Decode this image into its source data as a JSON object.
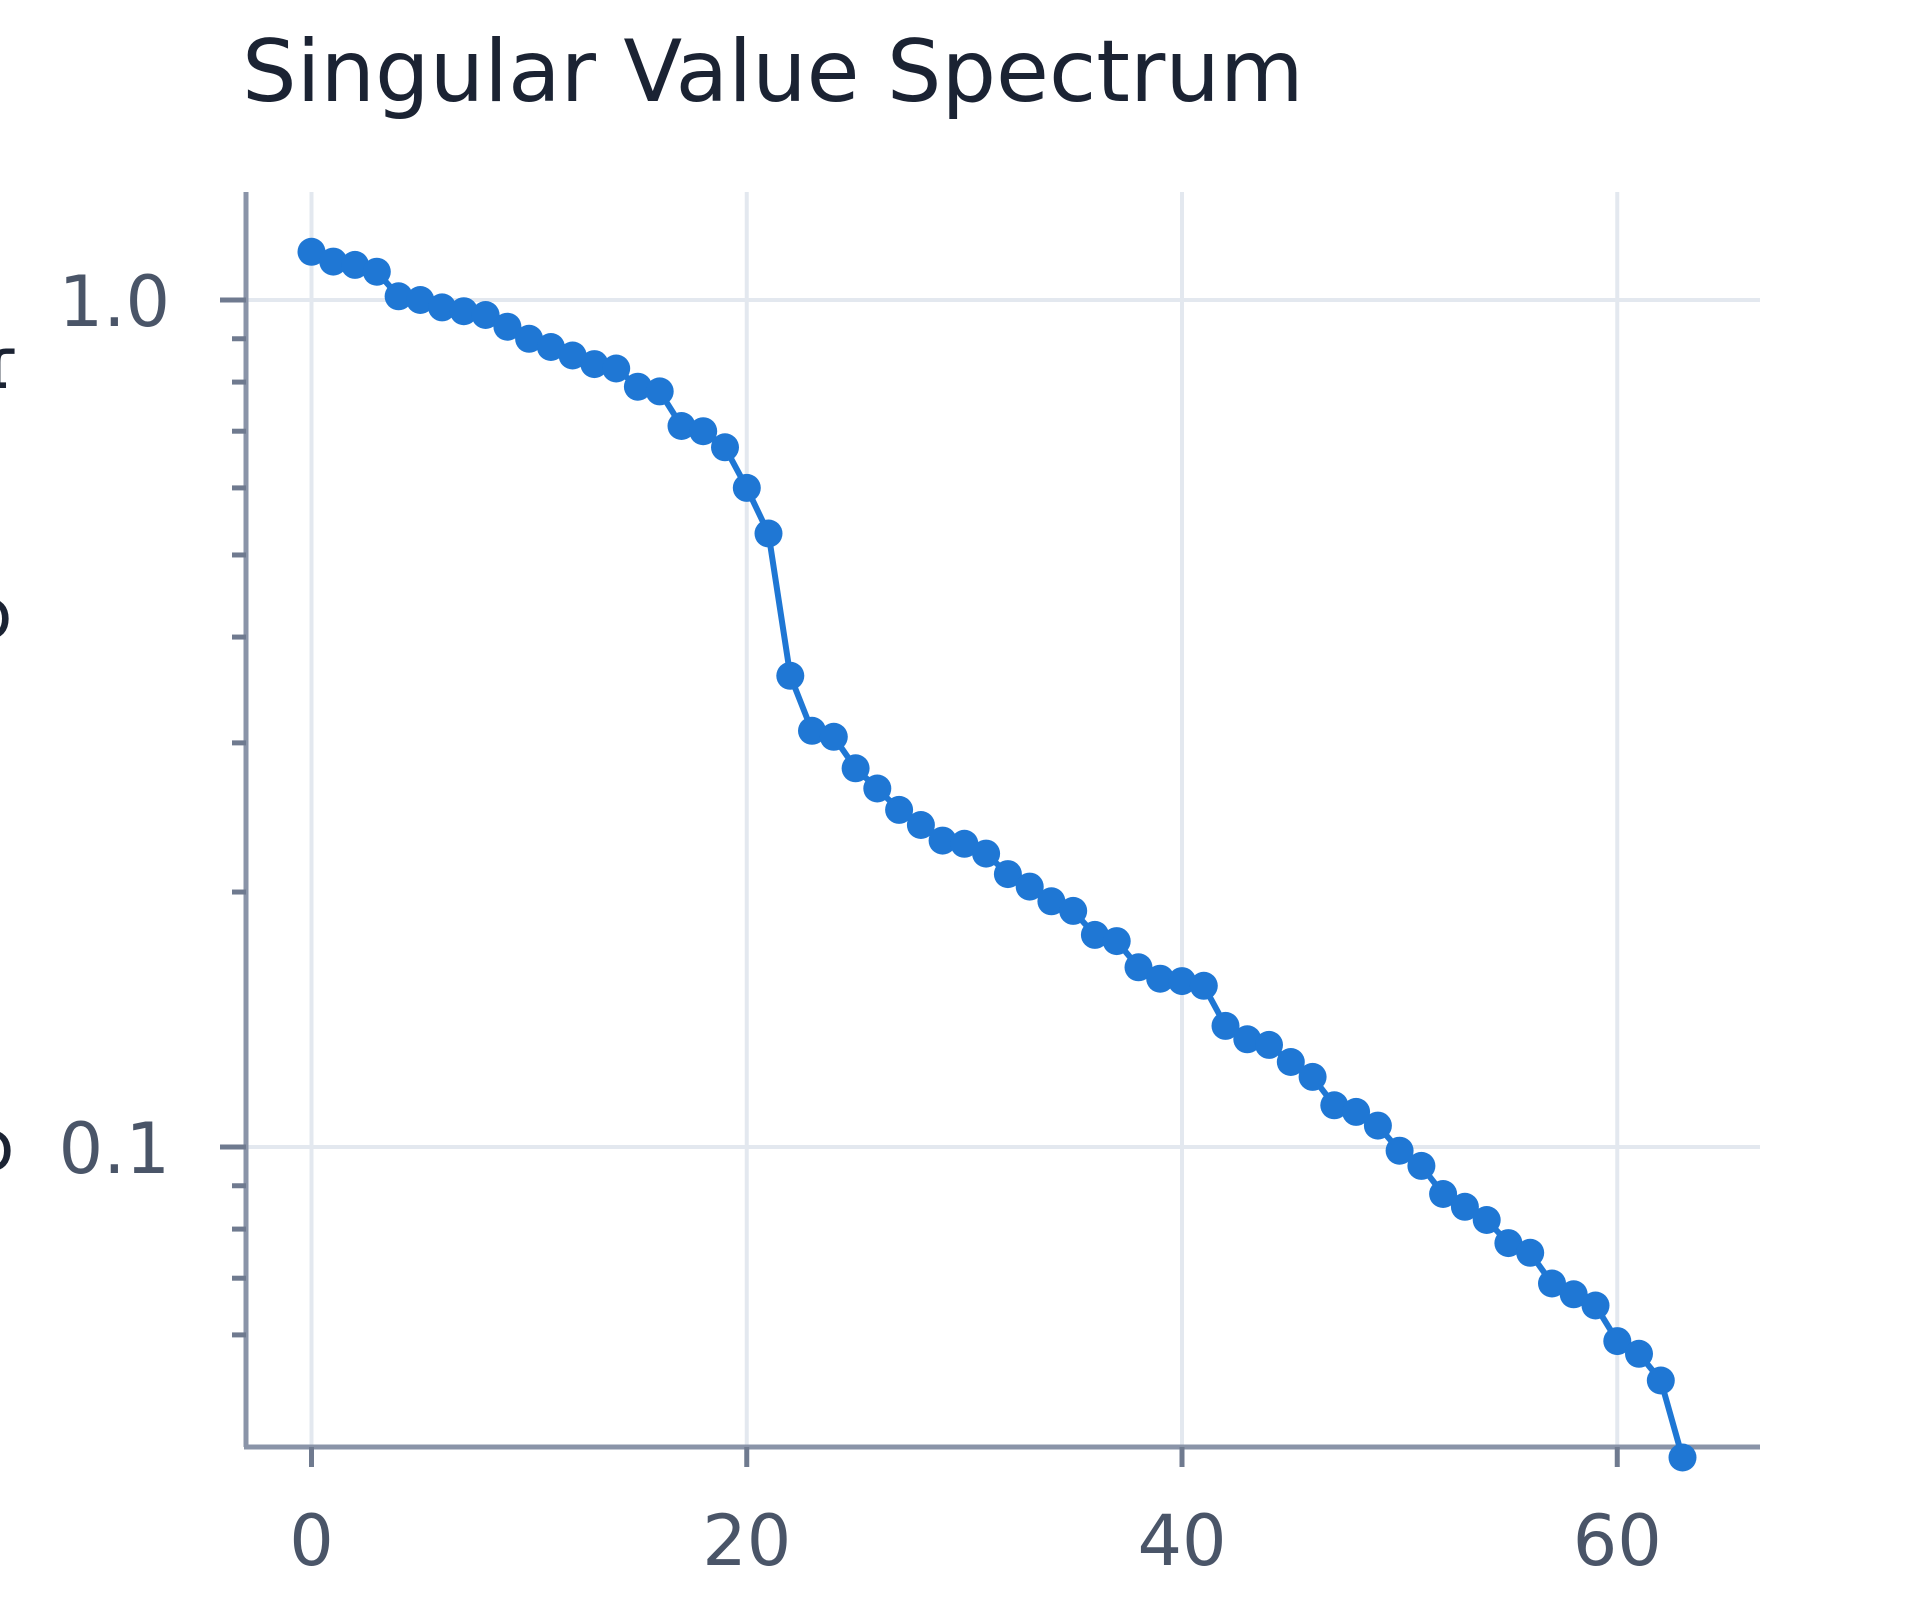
{
  "chart_data": {
    "type": "line",
    "title": "Singular Value Spectrum",
    "xlabel": "",
    "ylabel": "",
    "x_scale": "linear",
    "y_scale": "log",
    "xlim": [
      -3,
      66
    ],
    "ylim": [
      0.05,
      1.5
    ],
    "grid": true,
    "markers": true,
    "x_ticks": [
      {
        "value": 0,
        "label": "0"
      },
      {
        "value": 20,
        "label": "20"
      },
      {
        "value": 40,
        "label": "40"
      },
      {
        "value": 60,
        "label": "60"
      }
    ],
    "y_ticks": [
      {
        "value": 0.1,
        "label": "0.1"
      },
      {
        "value": 1.0,
        "label": "1.0"
      }
    ],
    "series": [
      {
        "color": "#1f77d4",
        "x": [
          0,
          1,
          2,
          3,
          4,
          5,
          6,
          7,
          8,
          9,
          10,
          11,
          12,
          13,
          14,
          15,
          16,
          17,
          18,
          19,
          20,
          21,
          22,
          23,
          24,
          25,
          26,
          27,
          28,
          29,
          30,
          31,
          32,
          33,
          34,
          35,
          36,
          37,
          38,
          39,
          40,
          41,
          42,
          43,
          44,
          45,
          46,
          47,
          48,
          49,
          50,
          51,
          52,
          53,
          54,
          55,
          56,
          57,
          58,
          59,
          60,
          61,
          62,
          63
        ],
        "y": [
          1.14,
          1.11,
          1.1,
          1.08,
          1.01,
          1.0,
          0.98,
          0.97,
          0.96,
          0.93,
          0.9,
          0.88,
          0.86,
          0.84,
          0.83,
          0.79,
          0.78,
          0.71,
          0.7,
          0.67,
          0.6,
          0.53,
          0.36,
          0.31,
          0.305,
          0.28,
          0.265,
          0.25,
          0.24,
          0.23,
          0.228,
          0.222,
          0.21,
          0.203,
          0.195,
          0.19,
          0.178,
          0.175,
          0.163,
          0.158,
          0.157,
          0.155,
          0.139,
          0.134,
          0.132,
          0.126,
          0.121,
          0.112,
          0.11,
          0.106,
          0.099,
          0.095,
          0.088,
          0.085,
          0.082,
          0.077,
          0.075,
          0.069,
          0.067,
          0.065,
          0.059,
          0.057,
          0.053,
          0.043
        ]
      }
    ]
  },
  "edge_glyphs": [
    "ɾ",
    "ɔ",
    "ɔ"
  ]
}
